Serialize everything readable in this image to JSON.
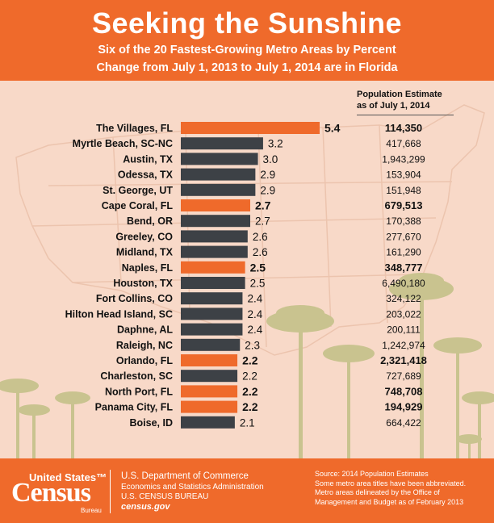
{
  "header": {
    "title": "Seeking the Sunshine",
    "subtitle_line1": "Six of the 20 Fastest-Growing Metro Areas by Percent",
    "subtitle_line2": "Change from July 1, 2013 to July 1, 2014 are in Florida"
  },
  "column_header": {
    "line1": "Population Estimate",
    "line2": "as of July 1, 2014"
  },
  "colors": {
    "header_bg": "#ef6a2b",
    "florida_bar": "#ef6a2b",
    "other_bar": "#3d4146",
    "background": "#f8d9c8",
    "map_lines": "#e8bfa9",
    "palm": "#c9c38f"
  },
  "chart_data": {
    "type": "bar",
    "orientation": "horizontal",
    "title": "Seeking the Sunshine",
    "categories": [
      "The Villages, FL",
      "Myrtle Beach, SC-NC",
      "Austin, TX",
      "Odessa, TX",
      "St. George, UT",
      "Cape Coral, FL",
      "Bend, OR",
      "Greeley, CO",
      "Midland, TX",
      "Naples, FL",
      "Houston, TX",
      "Fort Collins, CO",
      "Hilton Head Island, SC",
      "Daphne, AL",
      "Raleigh, NC",
      "Orlando, FL",
      "Charleston, SC",
      "North Port, FL",
      "Panama City, FL",
      "Boise, ID"
    ],
    "values": [
      5.4,
      3.2,
      3.0,
      2.9,
      2.9,
      2.7,
      2.7,
      2.6,
      2.6,
      2.5,
      2.5,
      2.4,
      2.4,
      2.4,
      2.3,
      2.2,
      2.2,
      2.2,
      2.2,
      2.1
    ],
    "value_labels": [
      "5.4",
      "3.2",
      "3.0",
      "2.9",
      "2.9",
      "2.7",
      "2.7",
      "2.6",
      "2.6",
      "2.5",
      "2.5",
      "2.4",
      "2.4",
      "2.4",
      "2.3",
      "2.2",
      "2.2",
      "2.2",
      "2.2",
      "2.1"
    ],
    "florida": [
      true,
      false,
      false,
      false,
      false,
      true,
      false,
      false,
      false,
      true,
      false,
      false,
      false,
      false,
      false,
      true,
      false,
      true,
      true,
      false
    ],
    "population": [
      "114,350",
      "417,668",
      "1,943,299",
      "153,904",
      "151,948",
      "679,513",
      "170,388",
      "277,670",
      "161,290",
      "348,777",
      "6,490,180",
      "324,122",
      "203,022",
      "200,111",
      "1,242,974",
      "2,321,418",
      "727,689",
      "748,708",
      "194,929",
      "664,422"
    ],
    "xlim": [
      0,
      5.4
    ]
  },
  "footer": {
    "logo_line1": "United States™",
    "logo_line2": "Census",
    "logo_line3": "Bureau",
    "dept1": "U.S. Department of Commerce",
    "dept2": "Economics and Statistics Administration",
    "dept3": "U.S. CENSUS BUREAU",
    "dept4": "census.gov",
    "source_lines": [
      "Source: 2014 Population Estimates",
      "Some metro area titles have been abbreviated.",
      "Metro areas delineated by the Office of",
      "Management and Budget as of February 2013"
    ]
  }
}
